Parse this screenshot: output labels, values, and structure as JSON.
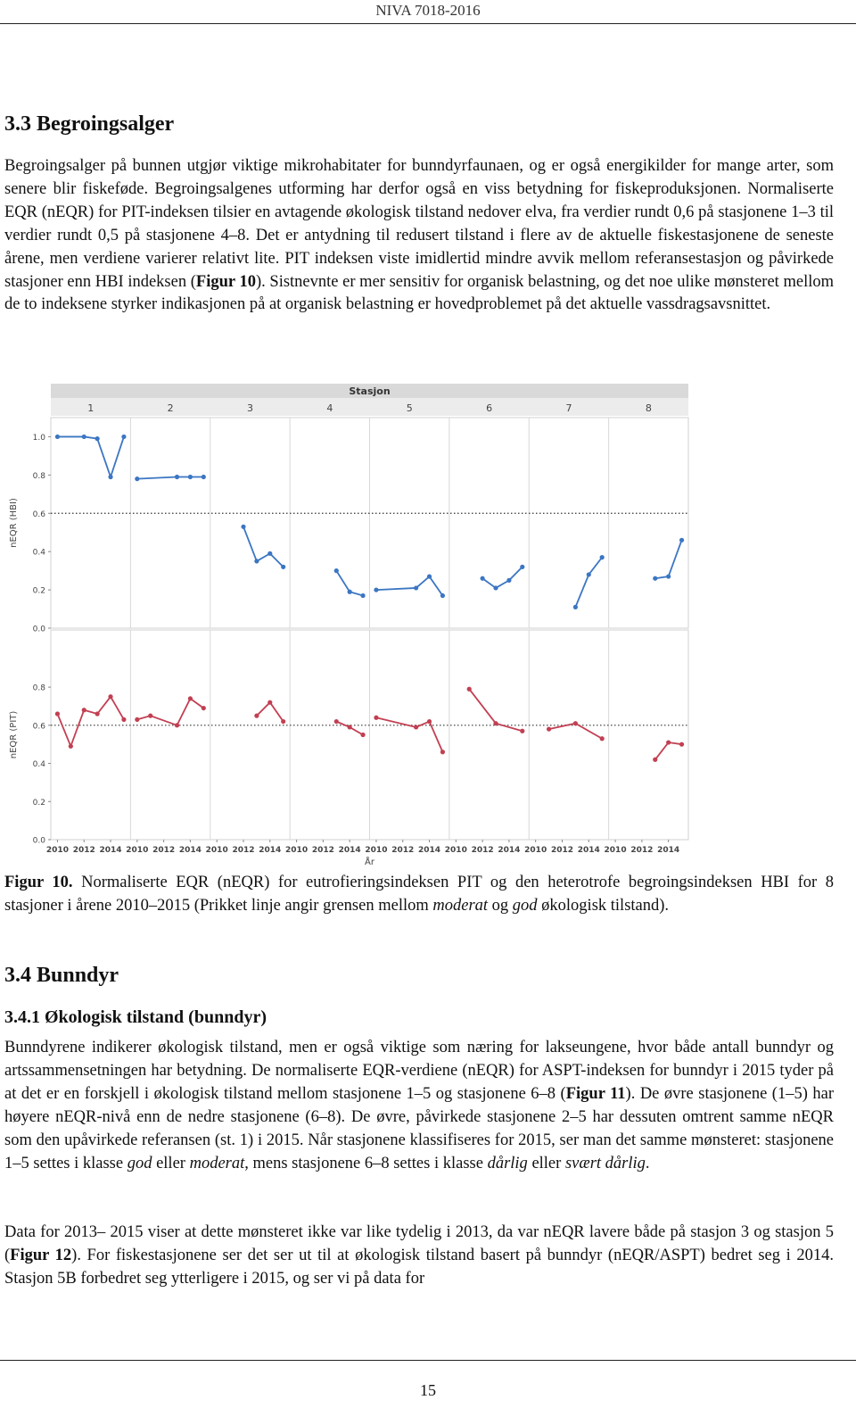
{
  "header": {
    "running_title": "NIVA 7018-2016"
  },
  "section_3_3": {
    "heading": "3.3 Begroingsalger",
    "paragraph": [
      "Begroingsalger på bunnen utgjør viktige mikrohabitater for bunndyrfaunaen, og er også energikilder for mange arter, som senere blir fiskeføde. Begroingsalgenes utforming har derfor også en viss betydning for fiskeproduksjonen. Normaliserte EQR (nEQR) for PIT-indeksen tilsier en avtagende økologisk tilstand nedover elva, fra verdier rundt 0,6 på stasjonene 1–3 til verdier rundt 0,5 på stasjonene 4–8. Det er antydning til redusert tilstand i flere av de aktuelle fiskestasjonene de seneste årene, men verdiene varierer relativt lite. PIT indeksen viste imidlertid mindre avvik mellom referansestasjon og påvirkede stasjoner enn HBI indeksen (",
      "Figur 10",
      "). Sistnevnte er mer sensitiv for organisk belastning, og det noe ulike mønsteret mellom de to indeksene styrker indikasjonen på at organisk belastning er hovedproblemet på det aktuelle vassdragsavsnittet."
    ]
  },
  "chart_data": {
    "type": "line",
    "header": "Stasjon",
    "stations": [
      "1",
      "2",
      "3",
      "4",
      "5",
      "6",
      "7",
      "8"
    ],
    "xlabel": "År",
    "xlim": [
      2009.5,
      2015.5
    ],
    "xticks": [
      2010,
      2012,
      2014
    ],
    "panels": [
      {
        "ylabel": "nEQR (HBI)",
        "color": "#3b76c3",
        "threshold": 0.6,
        "ylim": [
          0,
          1.1
        ],
        "yticks": [
          {
            "value": 0,
            "label": "0.0"
          },
          {
            "value": 0.2,
            "label": "0.2"
          },
          {
            "value": 0.4,
            "label": "0.4"
          },
          {
            "value": 0.6,
            "label": "0.6"
          },
          {
            "value": 0.8,
            "label": "0.8"
          },
          {
            "value": 1,
            "label": "1.0"
          }
        ],
        "series": [
          {
            "x": [
              2010,
              2012,
              2013,
              2014,
              2015
            ],
            "values": [
              1.0,
              1.0,
              0.99,
              0.79,
              1.0
            ]
          },
          {
            "x": [
              2010,
              2013,
              2014,
              2015
            ],
            "values": [
              0.78,
              0.79,
              0.79,
              0.79
            ]
          },
          {
            "x": [
              2012,
              2013,
              2014,
              2015
            ],
            "values": [
              0.53,
              0.35,
              0.39,
              0.32
            ]
          },
          {
            "x": [
              2013,
              2014,
              2015
            ],
            "values": [
              0.3,
              0.19,
              0.17
            ]
          },
          {
            "x": [
              2010,
              2013,
              2014,
              2015
            ],
            "values": [
              0.2,
              0.21,
              0.27,
              0.17
            ]
          },
          {
            "x": [
              2012,
              2013,
              2014,
              2015
            ],
            "values": [
              0.26,
              0.21,
              0.25,
              0.32
            ]
          },
          {
            "x": [
              2013,
              2014,
              2015
            ],
            "values": [
              0.11,
              0.28,
              0.37
            ]
          },
          {
            "x": [
              2013,
              2014,
              2015
            ],
            "values": [
              0.26,
              0.27,
              0.46
            ]
          }
        ]
      },
      {
        "ylabel": "nEQR (PIT)",
        "color": "#c23f52",
        "threshold": 0.6,
        "ylim": [
          0,
          1.1
        ],
        "yticks": [
          {
            "value": 0,
            "label": "0.0"
          },
          {
            "value": 0.2,
            "label": "0.2"
          },
          {
            "value": 0.4,
            "label": "0.4"
          },
          {
            "value": 0.6,
            "label": "0.6"
          },
          {
            "value": 0.8,
            "label": "0.8"
          }
        ],
        "series": [
          {
            "x": [
              2010,
              2011,
              2012,
              2013,
              2014,
              2015
            ],
            "values": [
              0.66,
              0.49,
              0.68,
              0.66,
              0.75,
              0.63
            ]
          },
          {
            "x": [
              2010,
              2011,
              2013,
              2014,
              2015
            ],
            "values": [
              0.63,
              0.65,
              0.6,
              0.74,
              0.69
            ]
          },
          {
            "x": [
              2013,
              2014,
              2015
            ],
            "values": [
              0.65,
              0.72,
              0.62
            ]
          },
          {
            "x": [
              2013,
              2014,
              2015
            ],
            "values": [
              0.62,
              0.59,
              0.55
            ]
          },
          {
            "x": [
              2010,
              2013,
              2014,
              2015
            ],
            "values": [
              0.64,
              0.59,
              0.62,
              0.46
            ]
          },
          {
            "x": [
              2011,
              2013,
              2015
            ],
            "values": [
              0.79,
              0.61,
              0.57
            ]
          },
          {
            "x": [
              2011,
              2013,
              2015
            ],
            "values": [
              0.58,
              0.61,
              0.53
            ]
          },
          {
            "x": [
              2013,
              2014,
              2015
            ],
            "values": [
              0.42,
              0.51,
              0.5
            ]
          }
        ]
      }
    ]
  },
  "figure": {
    "caption": [
      "Figur 10.",
      " Normaliserte EQR (nEQR) for eutrofieringsindeksen PIT og den heterotrofe begroingsindeksen HBI for 8 stasjoner i årene 2010–2015 (Prikket linje angir grensen mellom ",
      "moderat",
      " og ",
      "god",
      " økologisk tilstand)."
    ]
  },
  "section_3_4": {
    "heading": "3.4 Bunndyr",
    "subheading": "3.4.1 Økologisk tilstand (bunndyr)",
    "paragraphs": [
      [
        "Bunndyrene indikerer økologisk tilstand, men er også viktige som næring for lakseungene, hvor både antall bunndyr og artssammensetningen har betydning. De normaliserte EQR-verdiene (nEQR) for ASPT-indeksen for bunndyr i 2015 tyder på at det er en forskjell i økologisk tilstand mellom stasjonene 1–5 og stasjonene 6–8 (",
        "Figur 11",
        "). De øvre stasjonene (1–5) har høyere nEQR-nivå enn de nedre stasjonene (6–8). De øvre, påvirkede stasjonene 2–5 har dessuten omtrent samme nEQR som den upåvirkede referansen (st. 1) i 2015. Når stasjonene klassifiseres for 2015, ser man det samme mønsteret: stasjonene 1–5 settes i klasse ",
        "god",
        " eller ",
        "moderat",
        ", mens stasjonene 6–8 settes i klasse ",
        "dårlig",
        " eller ",
        "svært dårlig",
        "."
      ],
      [
        "Data for 2013– 2015 viser at dette mønsteret ikke var like tydelig i 2013, da var nEQR lavere både på stasjon 3 og stasjon 5 (",
        "Figur 12",
        "). For fiskestasjonene ser det ser ut til at økologisk tilstand basert på bunndyr (nEQR/ASPT) bedret seg i 2014. Stasjon 5B forbedret seg ytterligere i 2015, og ser vi på data for"
      ]
    ]
  },
  "footer": {
    "page_number": "15"
  }
}
